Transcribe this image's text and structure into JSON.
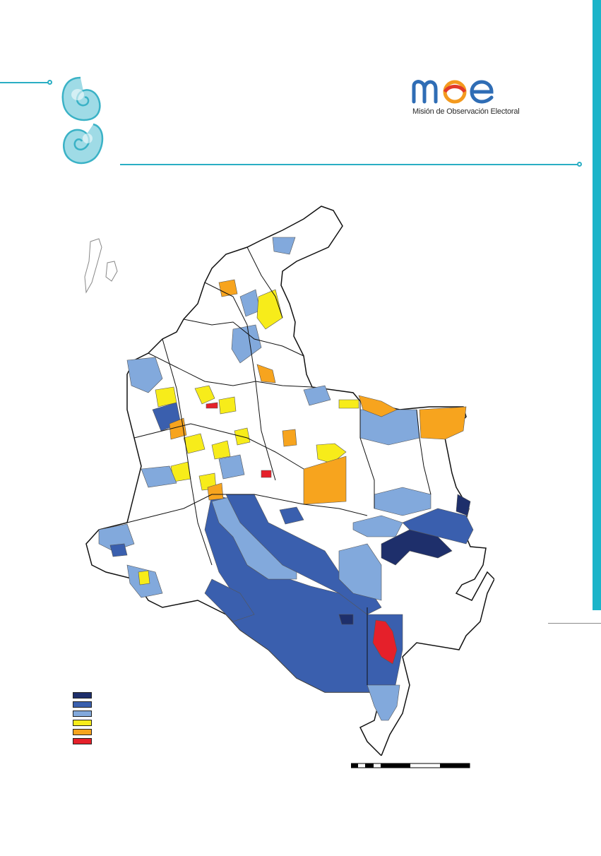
{
  "branding": {
    "logo_word": "moe",
    "logo_subtitle": "Misión de Observación Electoral",
    "primary_color": "#1bb4c9",
    "logo_blue": "#2f6db5",
    "logo_orange": "#f39a1e",
    "logo_red": "#e23a2a"
  },
  "legend": {
    "entries": [
      {
        "color": "#1e2f6b"
      },
      {
        "color": "#3a5fae"
      },
      {
        "color": "#82a9dc"
      },
      {
        "color": "#f7ec1a"
      },
      {
        "color": "#f7a41e"
      },
      {
        "color": "#e5202a"
      }
    ]
  },
  "map": {
    "fill_colors": {
      "very_high": "#1e2f6b",
      "high": "#3a5fae",
      "medium": "#82a9dc",
      "low_yellow": "#f7ec1a",
      "low_orange": "#f7a41e",
      "extreme_red": "#e5202a",
      "none": "#ffffff"
    }
  }
}
